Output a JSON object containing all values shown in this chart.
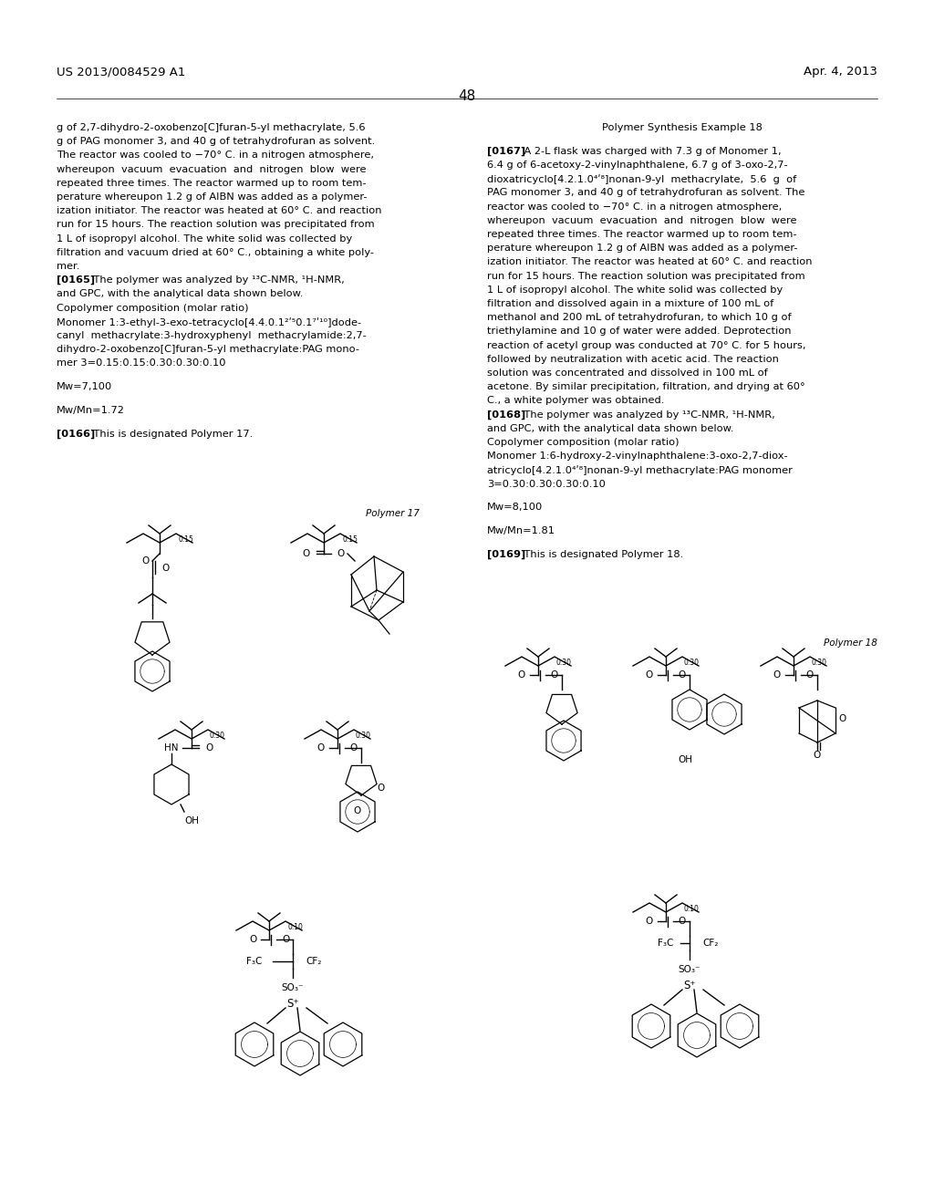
{
  "background_color": "#ffffff",
  "header_left": "US 2013/0084529 A1",
  "header_right": "Apr. 4, 2013",
  "page_number": "48",
  "left_col_lines": [
    "g of 2,7-dihydro-2-oxobenzo[C]furan-5-yl methacrylate, 5.6",
    "g of PAG monomer 3, and 40 g of tetrahydrofuran as solvent.",
    "The reactor was cooled to −70° C. in a nitrogen atmosphere,",
    "whereupon  vacuum  evacuation  and  nitrogen  blow  were",
    "repeated three times. The reactor warmed up to room tem-",
    "perature whereupon 1.2 g of AIBN was added as a polymer-",
    "ization initiator. The reactor was heated at 60° C. and reaction",
    "run for 15 hours. The reaction solution was precipitated from",
    "1 L of isopropyl alcohol. The white solid was collected by",
    "filtration and vacuum dried at 60° C., obtaining a white poly-",
    "mer.",
    "B[0165]E    The polymer was analyzed by ¹³C-NMR, ¹H-NMR,",
    "and GPC, with the analytical data shown below.",
    "Copolymer composition (molar ratio)",
    "Monomer 1:3-ethyl-3-exo-tetracyclo[4.4.0.1²ʹ⁵0.1⁷ʹ¹⁰]dode-",
    "canyl  methacrylate:3-hydroxyphenyl  methacrylamide:2,7-",
    "dihydro-2-oxobenzo[C]furan-5-yl methacrylate:PAG mono-",
    "mer 3=0.15:0.15:0.30:0.30:0.10",
    "",
    "Mw=7,100",
    "",
    "Mw/Mn=1.72",
    "",
    "B[0166]E    This is designated Polymer 17."
  ],
  "right_col_lines": [
    "C Polymer Synthesis Example 18",
    "",
    "B[0167]E    A 2-L flask was charged with 7.3 g of Monomer 1,",
    "6.4 g of 6-acetoxy-2-vinylnaphthalene, 6.7 g of 3-oxo-2,7-",
    "dioxatricyclo[4.2.1.0⁴ʹ⁸]nonan-9-yl  methacrylate,  5.6  g  of",
    "PAG monomer 3, and 40 g of tetrahydrofuran as solvent. The",
    "reactor was cooled to −70° C. in a nitrogen atmosphere,",
    "whereupon  vacuum  evacuation  and  nitrogen  blow  were",
    "repeated three times. The reactor warmed up to room tem-",
    "perature whereupon 1.2 g of AIBN was added as a polymer-",
    "ization initiator. The reactor was heated at 60° C. and reaction",
    "run for 15 hours. The reaction solution was precipitated from",
    "1 L of isopropyl alcohol. The white solid was collected by",
    "filtration and dissolved again in a mixture of 100 mL of",
    "methanol and 200 mL of tetrahydrofuran, to which 10 g of",
    "triethylamine and 10 g of water were added. Deprotection",
    "reaction of acetyl group was conducted at 70° C. for 5 hours,",
    "followed by neutralization with acetic acid. The reaction",
    "solution was concentrated and dissolved in 100 mL of",
    "acetone. By similar precipitation, filtration, and drying at 60°",
    "C., a white polymer was obtained.",
    "B[0168]E    The polymer was analyzed by ¹³C-NMR, ¹H-NMR,",
    "and GPC, with the analytical data shown below.",
    "Copolymer composition (molar ratio)",
    "Monomer 1:6-hydroxy-2-vinylnaphthalene:3-oxo-2,7-diox-",
    "atricyclo[4.2.1.0⁴ʹ⁸]nonan-9-yl methacrylate:PAG monomer",
    "3=0.30:0.30:0.30:0.10",
    "",
    "Mw=8,100",
    "",
    "Mw/Mn=1.81",
    "",
    "B[0169]E    This is designated Polymer 18."
  ]
}
